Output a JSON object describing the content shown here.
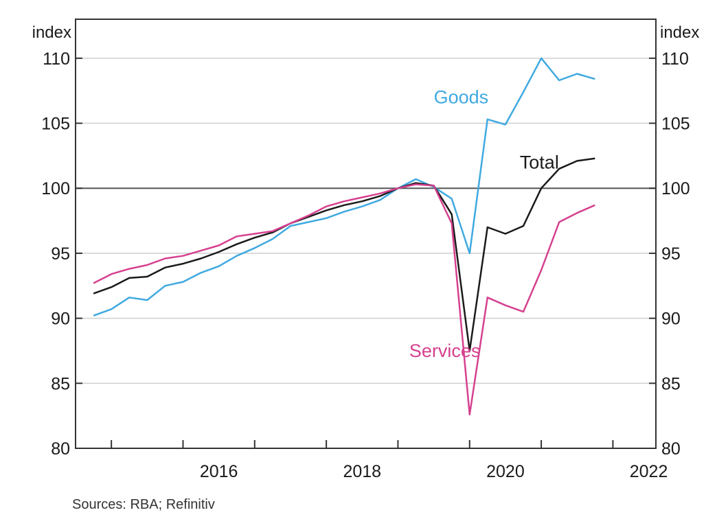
{
  "chart_data": {
    "type": "line",
    "title": "",
    "ylabel_left": "index",
    "ylabel_right": "index",
    "ylim": [
      80,
      113
    ],
    "yticks": [
      80,
      85,
      90,
      95,
      100,
      105,
      110
    ],
    "reference_line": 100,
    "xlim": [
      2014.5,
      2022.6
    ],
    "xtick_labels": [
      "2016",
      "2018",
      "2020",
      "2022"
    ],
    "grid": "horizontal",
    "x": [
      2014.75,
      2015.0,
      2015.25,
      2015.5,
      2015.75,
      2016.0,
      2016.25,
      2016.5,
      2016.75,
      2017.0,
      2017.25,
      2017.5,
      2017.75,
      2018.0,
      2018.25,
      2018.5,
      2018.75,
      2019.0,
      2019.25,
      2019.5,
      2019.75,
      2020.0,
      2020.25,
      2020.5,
      2020.75,
      2021.0,
      2021.25,
      2021.5,
      2021.75
    ],
    "series": [
      {
        "name": "Goods",
        "color": "#3fa9e0",
        "values": [
          90.2,
          90.7,
          91.6,
          91.4,
          92.5,
          92.8,
          93.5,
          94.0,
          94.8,
          95.4,
          96.1,
          97.1,
          97.4,
          97.7,
          98.2,
          98.6,
          99.1,
          100.0,
          100.7,
          100.1,
          99.2,
          95.0,
          105.3,
          104.9,
          107.4,
          110.0,
          108.3,
          108.8,
          108.4
        ]
      },
      {
        "name": "Total",
        "color": "#1a1a1a",
        "values": [
          91.9,
          92.4,
          93.1,
          93.2,
          93.9,
          94.2,
          94.6,
          95.1,
          95.7,
          96.2,
          96.6,
          97.3,
          97.8,
          98.3,
          98.7,
          99.0,
          99.4,
          100.0,
          100.4,
          100.2,
          98.0,
          87.5,
          97.0,
          96.5,
          97.1,
          100.0,
          101.5,
          102.1,
          102.3
        ]
      },
      {
        "name": "Services",
        "color": "#d6408f",
        "values": [
          92.7,
          93.4,
          93.8,
          94.1,
          94.6,
          94.8,
          95.2,
          95.6,
          96.3,
          96.5,
          96.7,
          97.3,
          97.9,
          98.6,
          99.0,
          99.3,
          99.6,
          100.0,
          100.3,
          100.2,
          97.3,
          82.6,
          91.6,
          91.0,
          90.5,
          93.7,
          97.4,
          98.1,
          98.7
        ]
      }
    ]
  },
  "source_note": "Sources: RBA; Refinitiv"
}
